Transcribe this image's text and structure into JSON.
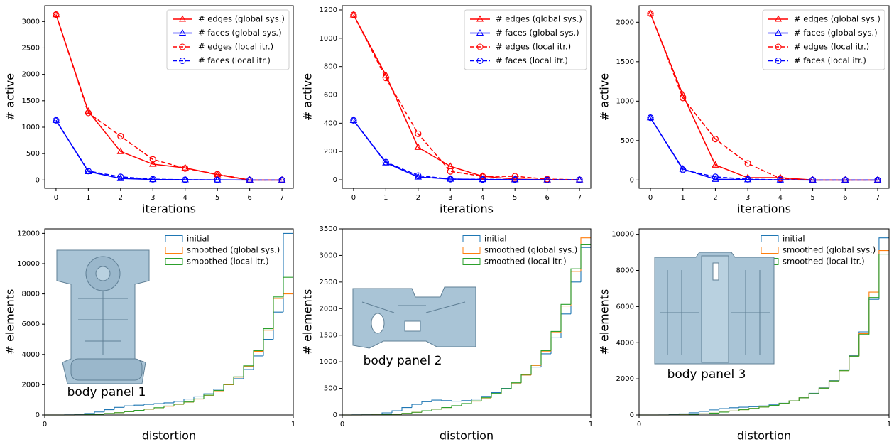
{
  "chart_data": [
    {
      "type": "line",
      "xlabel": "iterations",
      "ylabel": "# active",
      "x": [
        0,
        1,
        2,
        3,
        4,
        5,
        6,
        7
      ],
      "xlim": [
        -0.35,
        7.35
      ],
      "xticks": [
        0,
        1,
        2,
        3,
        4,
        5,
        6,
        7
      ],
      "ylim": [
        -157,
        3300
      ],
      "yticks": [
        0,
        500,
        1000,
        1500,
        2000,
        2500,
        3000
      ],
      "legend": "upper right",
      "series": [
        {
          "name": "# edges (global sys.)",
          "color": "#ff0000",
          "marker": "triangle",
          "dash": false,
          "values": [
            3130,
            1300,
            540,
            300,
            230,
            100,
            0,
            0
          ]
        },
        {
          "name": "# faces (global sys.)",
          "color": "#0000ff",
          "marker": "triangle",
          "dash": false,
          "values": [
            1130,
            160,
            30,
            10,
            5,
            2,
            0,
            0
          ]
        },
        {
          "name": "# edges (local itr.)",
          "color": "#ff0000",
          "marker": "circle",
          "dash": true,
          "values": [
            3130,
            1270,
            830,
            390,
            220,
            110,
            0,
            0
          ]
        },
        {
          "name": "# faces (local itr.)",
          "color": "#0000ff",
          "marker": "circle",
          "dash": true,
          "values": [
            1130,
            170,
            60,
            15,
            5,
            2,
            0,
            0
          ]
        }
      ]
    },
    {
      "type": "line",
      "xlabel": "iterations",
      "ylabel": "# active",
      "x": [
        0,
        1,
        2,
        3,
        4,
        5,
        6,
        7
      ],
      "xlim": [
        -0.35,
        7.35
      ],
      "xticks": [
        0,
        1,
        2,
        3,
        4,
        5,
        6,
        7
      ],
      "ylim": [
        -60,
        1230
      ],
      "yticks": [
        0,
        200,
        400,
        600,
        800,
        1000,
        1200
      ],
      "legend": "upper right",
      "series": [
        {
          "name": "# edges (global sys.)",
          "color": "#ff0000",
          "marker": "triangle",
          "dash": false,
          "values": [
            1165,
            740,
            230,
            95,
            25,
            5,
            0,
            0
          ]
        },
        {
          "name": "# faces (global sys.)",
          "color": "#0000ff",
          "marker": "triangle",
          "dash": false,
          "values": [
            420,
            120,
            20,
            5,
            2,
            1,
            0,
            0
          ]
        },
        {
          "name": "# edges (local itr.)",
          "color": "#ff0000",
          "marker": "circle",
          "dash": true,
          "values": [
            1165,
            720,
            325,
            60,
            25,
            25,
            5,
            0
          ]
        },
        {
          "name": "# faces (local itr.)",
          "color": "#0000ff",
          "marker": "circle",
          "dash": true,
          "values": [
            420,
            125,
            30,
            5,
            3,
            2,
            0,
            0
          ]
        }
      ]
    },
    {
      "type": "line",
      "xlabel": "iterations",
      "ylabel": "# active",
      "x": [
        0,
        1,
        2,
        3,
        4,
        5,
        6,
        7
      ],
      "xlim": [
        -0.35,
        7.35
      ],
      "xticks": [
        0,
        1,
        2,
        3,
        4,
        5,
        6,
        7
      ],
      "ylim": [
        -105,
        2210
      ],
      "yticks": [
        0,
        500,
        1000,
        1500,
        2000
      ],
      "legend": "upper right",
      "series": [
        {
          "name": "# edges (global sys.)",
          "color": "#ff0000",
          "marker": "triangle",
          "dash": false,
          "values": [
            2110,
            1080,
            190,
            30,
            30,
            0,
            0,
            0
          ]
        },
        {
          "name": "# faces (global sys.)",
          "color": "#0000ff",
          "marker": "triangle",
          "dash": false,
          "values": [
            790,
            140,
            10,
            5,
            2,
            0,
            0,
            0
          ]
        },
        {
          "name": "# edges (local itr.)",
          "color": "#ff0000",
          "marker": "circle",
          "dash": true,
          "values": [
            2110,
            1040,
            520,
            210,
            20,
            0,
            0,
            0
          ]
        },
        {
          "name": "# faces (local itr.)",
          "color": "#0000ff",
          "marker": "circle",
          "dash": true,
          "values": [
            790,
            130,
            40,
            10,
            3,
            0,
            0,
            0
          ]
        }
      ]
    },
    {
      "type": "histogram",
      "xlabel": "distortion",
      "ylabel": "# elements",
      "annotation": "body panel 1",
      "bins": [
        0,
        0.04,
        0.08,
        0.12,
        0.16,
        0.2,
        0.24,
        0.28,
        0.32,
        0.36,
        0.4,
        0.44,
        0.48,
        0.52,
        0.56,
        0.6,
        0.64,
        0.68,
        0.72,
        0.76,
        0.8,
        0.84,
        0.88,
        0.92,
        0.96,
        1
      ],
      "xlim": [
        0,
        1
      ],
      "xticks": [
        0,
        1
      ],
      "ylim": [
        0,
        12300
      ],
      "yticks": [
        0,
        2000,
        4000,
        6000,
        8000,
        10000,
        12000
      ],
      "legend": "upper right",
      "series": [
        {
          "name": "initial",
          "color": "#1f77b4",
          "values": [
            0,
            0,
            10,
            30,
            100,
            200,
            350,
            500,
            600,
            650,
            700,
            750,
            800,
            900,
            1050,
            1200,
            1400,
            1700,
            2000,
            2400,
            3000,
            3900,
            5000,
            6800,
            12000
          ]
        },
        {
          "name": "smoothed (global sys.)",
          "color": "#ff7f0e",
          "values": [
            0,
            0,
            0,
            5,
            20,
            50,
            100,
            150,
            220,
            300,
            380,
            470,
            580,
            700,
            850,
            1050,
            1300,
            1600,
            2000,
            2500,
            3200,
            4200,
            5600,
            7700,
            8000
          ]
        },
        {
          "name": "smoothed (local itr.)",
          "color": "#2ca02c",
          "values": [
            0,
            0,
            0,
            5,
            20,
            50,
            100,
            150,
            220,
            300,
            390,
            480,
            590,
            710,
            860,
            1060,
            1310,
            1620,
            2020,
            2520,
            3250,
            4250,
            5700,
            7800,
            9100
          ]
        }
      ]
    },
    {
      "type": "histogram",
      "xlabel": "distortion",
      "ylabel": "# elements",
      "annotation": "body panel 2",
      "bins": [
        0,
        0.04,
        0.08,
        0.12,
        0.16,
        0.2,
        0.24,
        0.28,
        0.32,
        0.36,
        0.4,
        0.44,
        0.48,
        0.52,
        0.56,
        0.6,
        0.64,
        0.68,
        0.72,
        0.76,
        0.8,
        0.84,
        0.88,
        0.92,
        0.96,
        1
      ],
      "xlim": [
        0,
        1
      ],
      "xticks": [
        0,
        1
      ],
      "ylim": [
        0,
        3500
      ],
      "yticks": [
        0,
        500,
        1000,
        1500,
        2000,
        2500,
        3000,
        3500
      ],
      "legend": "upper right",
      "series": [
        {
          "name": "initial",
          "color": "#1f77b4",
          "values": [
            0,
            2,
            5,
            15,
            40,
            80,
            140,
            200,
            250,
            280,
            270,
            260,
            270,
            300,
            350,
            420,
            500,
            600,
            750,
            900,
            1150,
            1450,
            1900,
            2500,
            3150
          ]
        },
        {
          "name": "smoothed (global sys.)",
          "color": "#ff7f0e",
          "values": [
            0,
            0,
            1,
            3,
            8,
            15,
            30,
            50,
            80,
            110,
            140,
            170,
            210,
            260,
            320,
            400,
            490,
            600,
            750,
            930,
            1200,
            1550,
            2050,
            2700,
            3330
          ]
        },
        {
          "name": "smoothed (local itr.)",
          "color": "#2ca02c",
          "values": [
            0,
            0,
            1,
            3,
            8,
            15,
            30,
            50,
            80,
            110,
            140,
            175,
            215,
            265,
            325,
            405,
            495,
            605,
            760,
            940,
            1210,
            1570,
            2080,
            2750,
            3200
          ]
        }
      ]
    },
    {
      "type": "histogram",
      "xlabel": "distortion",
      "ylabel": "# elements",
      "annotation": "body panel 3",
      "bins": [
        0,
        0.04,
        0.08,
        0.12,
        0.16,
        0.2,
        0.24,
        0.28,
        0.32,
        0.36,
        0.4,
        0.44,
        0.48,
        0.52,
        0.56,
        0.6,
        0.64,
        0.68,
        0.72,
        0.76,
        0.8,
        0.84,
        0.88,
        0.92,
        0.96,
        1
      ],
      "xlim": [
        0,
        1
      ],
      "xticks": [
        0,
        1
      ],
      "ylim": [
        0,
        10300
      ],
      "yticks": [
        0,
        2000,
        4000,
        6000,
        8000,
        10000
      ],
      "legend": "upper right",
      "series": [
        {
          "name": "initial",
          "color": "#1f77b4",
          "values": [
            0,
            0,
            5,
            20,
            60,
            120,
            200,
            280,
            350,
            400,
            430,
            460,
            500,
            560,
            650,
            780,
            950,
            1200,
            1500,
            1900,
            2500,
            3300,
            4600,
            6400,
            9800
          ]
        },
        {
          "name": "smoothed (global sys.)",
          "color": "#ff7f0e",
          "values": [
            0,
            0,
            0,
            3,
            10,
            30,
            60,
            100,
            160,
            220,
            290,
            360,
            440,
            530,
            640,
            780,
            950,
            1180,
            1480,
            1880,
            2450,
            3250,
            4500,
            6800,
            9100
          ]
        },
        {
          "name": "smoothed (local itr.)",
          "color": "#2ca02c",
          "values": [
            0,
            0,
            0,
            3,
            10,
            30,
            60,
            100,
            160,
            220,
            290,
            360,
            440,
            530,
            640,
            780,
            950,
            1180,
            1480,
            1880,
            2450,
            3250,
            4450,
            6500,
            8900
          ]
        }
      ]
    }
  ]
}
